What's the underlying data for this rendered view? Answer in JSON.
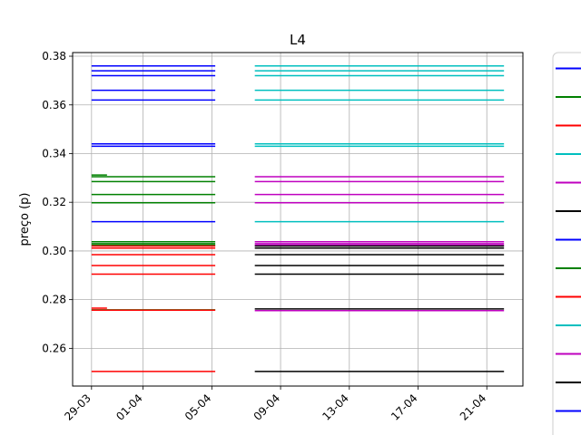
{
  "chart_data": {
    "type": "line",
    "title": "L4",
    "xlabel": "",
    "ylabel": "preço (p)",
    "x_ticks": [
      "29-03",
      "01-04",
      "05-04",
      "09-04",
      "13-04",
      "17-04",
      "21-04"
    ],
    "x_tick_days": [
      0,
      3,
      7,
      11,
      15,
      19,
      23
    ],
    "xlim_days": [
      -1.1,
      25.1
    ],
    "ylim": [
      0.2445,
      0.3815
    ],
    "y_ticks": [
      0.26,
      0.28,
      0.3,
      0.32,
      0.34,
      0.36,
      0.38
    ],
    "y_tick_labels": [
      "0.26",
      "0.28",
      "0.30",
      "0.32",
      "0.34",
      "0.36",
      "0.38"
    ],
    "grid": true,
    "legend": "right, partially cut off",
    "legend_colors": [
      "#0000ff",
      "#008000",
      "#ff0000",
      "#00bfbf",
      "#bf00bf",
      "#000000",
      "#0000ff",
      "#008000",
      "#ff0000",
      "#00bfbf",
      "#bf00bf",
      "#000000",
      "#0000ff"
    ],
    "series": [
      {
        "color": "#0000ff",
        "x_range_days": [
          0,
          7.2
        ],
        "levels": [
          0.376,
          0.374,
          0.372,
          0.366,
          0.362,
          0.344,
          0.343,
          0.312
        ]
      },
      {
        "color": "#008000",
        "x_range_days": [
          0,
          7.2
        ],
        "levels": [
          0.3305,
          0.3285,
          0.3232,
          0.3198,
          0.3038,
          0.303,
          0.3024,
          0.2758
        ]
      },
      {
        "color": "#008000",
        "x_range_days": [
          0,
          0.9
        ],
        "levels": [
          0.3312
        ]
      },
      {
        "color": "#ff0000",
        "x_range_days": [
          0,
          7.2
        ],
        "levels": [
          0.302,
          0.3012,
          0.2985,
          0.294,
          0.2905,
          0.2757,
          0.2505
        ]
      },
      {
        "color": "#ff0000",
        "x_range_days": [
          0,
          0.9
        ],
        "levels": [
          0.2765
        ]
      },
      {
        "color": "#00bfbf",
        "x_range_days": [
          9.5,
          24.0
        ],
        "levels": [
          0.376,
          0.374,
          0.372,
          0.366,
          0.362,
          0.344,
          0.343,
          0.312
        ]
      },
      {
        "color": "#bf00bf",
        "x_range_days": [
          9.5,
          24.0
        ],
        "levels": [
          0.3305,
          0.3285,
          0.3232,
          0.3198,
          0.3038,
          0.303,
          0.3024,
          0.2755
        ]
      },
      {
        "color": "#000000",
        "x_range_days": [
          9.5,
          24.0
        ],
        "levels": [
          0.302,
          0.3012,
          0.2985,
          0.294,
          0.2905,
          0.2762,
          0.2505
        ]
      }
    ]
  }
}
